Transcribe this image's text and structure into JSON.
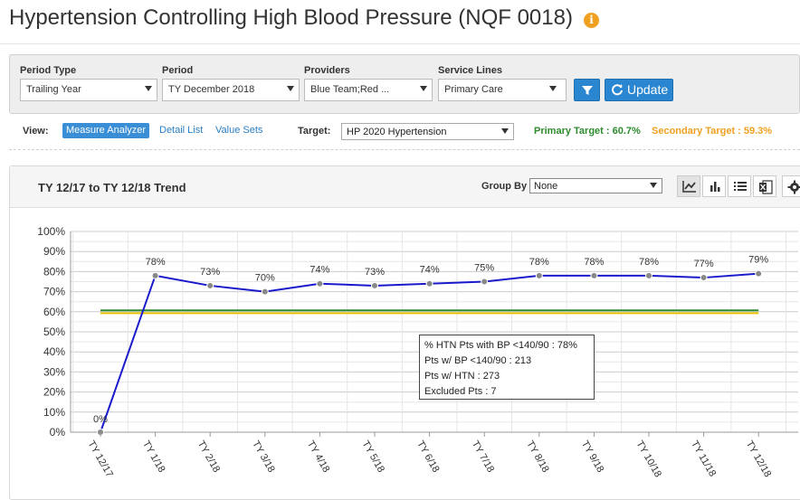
{
  "page": {
    "title": "Hypertension Controlling High Blood Pressure (NQF 0018)",
    "info_icon": "info-icon"
  },
  "filters": {
    "period_type": {
      "label": "Period Type",
      "value": "Trailing Year"
    },
    "period": {
      "label": "Period",
      "value": "TY December 2018"
    },
    "providers": {
      "label": "Providers",
      "value": "Blue Team;Red ..."
    },
    "service_lines": {
      "label": "Service Lines",
      "value": "Primary Care"
    },
    "filter_button_icon": "filter-icon",
    "update_label": "Update",
    "update_icon": "refresh-icon",
    "accent_color": "#2a86d0"
  },
  "view": {
    "label": "View:",
    "tabs": [
      {
        "label": "Measure Analyzer",
        "active": true
      },
      {
        "label": "Detail List",
        "active": false
      },
      {
        "label": "Value Sets",
        "active": false
      }
    ],
    "target_label": "Target:",
    "target_value": "HP 2020 Hypertension",
    "primary_target": "Primary Target : 60.7%",
    "secondary_target": "Secondary Target : 59.3%",
    "primary_color": "#2e8b2e",
    "secondary_color": "#f0a020"
  },
  "chart_panel": {
    "title": "TY 12/17 to TY 12/18 Trend",
    "group_by_label": "Group By",
    "group_by_value": "None",
    "tools": [
      "line-chart-icon",
      "bar-chart-icon",
      "list-icon",
      "excel-icon",
      "gear-icon"
    ]
  },
  "chart_data": {
    "type": "line",
    "categories": [
      "TY 12/17",
      "TY 1/18",
      "TY 2/18",
      "TY 3/18",
      "TY 4/18",
      "TY 5/18",
      "TY 6/18",
      "TY 7/18",
      "TY 8/18",
      "TY 9/18",
      "TY 10/18",
      "TY 11/18",
      "TY 12/18"
    ],
    "values": [
      0,
      78,
      73,
      70,
      74,
      73,
      74,
      75,
      78,
      78,
      78,
      77,
      79
    ],
    "data_labels": [
      "0%",
      "78%",
      "73%",
      "70%",
      "74%",
      "73%",
      "74%",
      "75%",
      "78%",
      "78%",
      "78%",
      "77%",
      "79%"
    ],
    "y_ticks": [
      "0%",
      "10%",
      "20%",
      "30%",
      "40%",
      "50%",
      "60%",
      "70%",
      "80%",
      "90%",
      "100%"
    ],
    "ylim": [
      0,
      100
    ],
    "grid": true,
    "line_color": "#1a1acc",
    "reference_lines": [
      {
        "value": 60.7,
        "color": "#2e8b2e"
      },
      {
        "value": 59.3,
        "color": "#e6c200"
      }
    ]
  },
  "tooltip": {
    "lines": [
      "% HTN Pts with BP <140/90 : 78%",
      "Pts w/ BP <140/90 : 213",
      "Pts w/ HTN : 273",
      "Excluded Pts : 7"
    ]
  }
}
